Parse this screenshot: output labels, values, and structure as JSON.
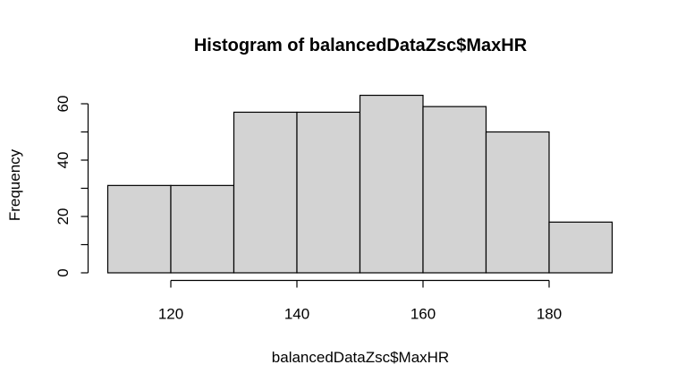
{
  "chart_data": {
    "type": "bar",
    "title": "Histogram of balancedDataZsc$MaxHR",
    "xlabel": "balancedDataZsc$MaxHR",
    "ylabel": "Frequency",
    "bins": [
      {
        "from": 110,
        "to": 120,
        "count": 31
      },
      {
        "from": 120,
        "to": 130,
        "count": 31
      },
      {
        "from": 130,
        "to": 140,
        "count": 57
      },
      {
        "from": 140,
        "to": 150,
        "count": 57
      },
      {
        "from": 150,
        "to": 160,
        "count": 63
      },
      {
        "from": 160,
        "to": 170,
        "count": 59
      },
      {
        "from": 170,
        "to": 180,
        "count": 50
      },
      {
        "from": 180,
        "to": 190,
        "count": 18
      }
    ],
    "xlim": [
      110,
      190
    ],
    "ylim": [
      0,
      60
    ],
    "x_ticks": [
      120,
      140,
      160,
      180
    ],
    "x_tick_labels": [
      "120",
      "140",
      "160",
      "180"
    ],
    "y_ticks": [
      0,
      10,
      20,
      30,
      40,
      50,
      60
    ],
    "y_tick_labels": [
      "0",
      "",
      "20",
      "",
      "40",
      "",
      "60"
    ],
    "bar_fill": "#d3d3d3",
    "bar_stroke": "#000000",
    "grid": false,
    "legend": "none"
  }
}
